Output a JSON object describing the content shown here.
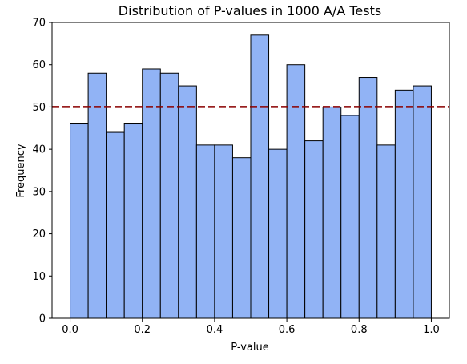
{
  "chart_data": {
    "type": "bar",
    "title": "Distribution of P-values in 1000 A/A Tests",
    "xlabel": "P-value",
    "ylabel": "Frequency",
    "bin_edges": [
      0.0,
      0.05,
      0.1,
      0.15,
      0.2,
      0.25,
      0.3,
      0.35,
      0.4,
      0.45,
      0.5,
      0.55,
      0.6,
      0.65,
      0.7,
      0.75,
      0.8,
      0.85,
      0.9,
      0.95,
      1.0
    ],
    "values": [
      46,
      58,
      44,
      46,
      59,
      58,
      55,
      41,
      41,
      38,
      67,
      40,
      60,
      42,
      50,
      48,
      57,
      41,
      54,
      55
    ],
    "xlim": [
      -0.05,
      1.05
    ],
    "ylim": [
      0,
      70
    ],
    "x_ticks": [
      0.0,
      0.2,
      0.4,
      0.6,
      0.8,
      1.0
    ],
    "x_tick_labels": [
      "0.0",
      "0.2",
      "0.4",
      "0.6",
      "0.8",
      "1.0"
    ],
    "y_ticks": [
      0,
      10,
      20,
      30,
      40,
      50,
      60,
      70
    ],
    "y_tick_labels": [
      "0",
      "10",
      "20",
      "30",
      "40",
      "50",
      "60",
      "70"
    ],
    "reference_line": {
      "y": 50,
      "style": "dashed",
      "color": "#8b0000"
    },
    "bar_color": "#91b3f5",
    "bar_edge_color": "#000000",
    "grid": false
  }
}
